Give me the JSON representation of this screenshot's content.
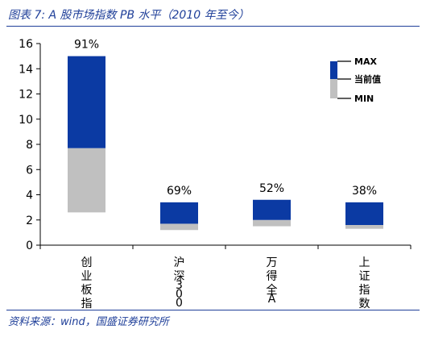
{
  "header": {
    "title": "图表 7:  A 股市场指数 PB 水平（2010 年至今）"
  },
  "footer": {
    "source": "资料来源：wind，国盛证券研究所"
  },
  "chart_data": {
    "type": "bar",
    "stacked_range": true,
    "categories": [
      "创业板指",
      "沪深300",
      "万得全A",
      "上证指数"
    ],
    "min": [
      2.6,
      1.2,
      1.5,
      1.3
    ],
    "current": [
      7.7,
      1.7,
      2.0,
      1.6
    ],
    "max": [
      15.0,
      3.4,
      3.6,
      3.4
    ],
    "percentile_labels": [
      "91%",
      "69%",
      "52%",
      "38%"
    ],
    "legend": [
      "MAX",
      "当前值",
      "MIN"
    ],
    "yticks": [
      0,
      2,
      4,
      6,
      8,
      10,
      12,
      14,
      16
    ],
    "ylim": [
      0,
      16
    ],
    "colors": {
      "upper": "#0b3aa3",
      "lower": "#c0c0c0"
    }
  }
}
